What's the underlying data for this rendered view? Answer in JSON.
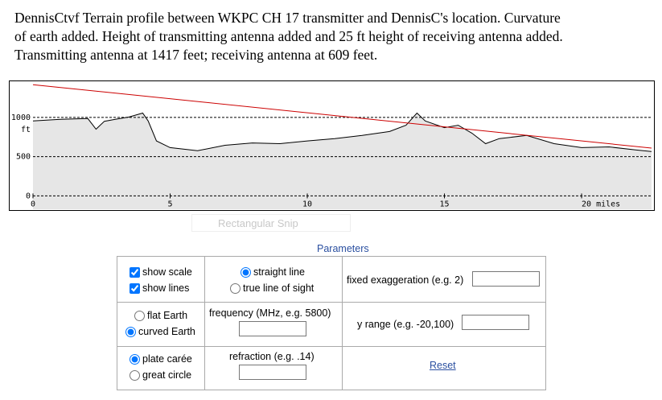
{
  "caption": [
    "DennisCtvf  Terrain profile between WKPC CH 17 transmitter and DennisC's location. Curvature",
    "of earth added. Height of transmitting antenna added and 25 ft height of receiving antenna added.",
    "Transmitting antenna at 1417 feet; receiving antenna at 609 feet."
  ],
  "chart_data": {
    "type": "line",
    "series": [
      {
        "name": "terrain",
        "color": "#000000",
        "fill": "#e6e6e6",
        "x": [
          0,
          1,
          2,
          2.3,
          2.6,
          3,
          3.5,
          4,
          4.2,
          4.5,
          5,
          6,
          7,
          8,
          9,
          10,
          11,
          12,
          13,
          13.6,
          14,
          14.3,
          15,
          15.5,
          16,
          16.5,
          17,
          18,
          19,
          20,
          21,
          22,
          22.55
        ],
        "values": [
          955,
          975,
          985,
          850,
          950,
          975,
          1005,
          1055,
          955,
          700,
          615,
          575,
          645,
          675,
          665,
          700,
          730,
          770,
          820,
          900,
          1055,
          955,
          870,
          900,
          800,
          665,
          730,
          770,
          665,
          615,
          625,
          585,
          565
        ]
      },
      {
        "name": "line of sight",
        "color": "#cc0000",
        "x": [
          0,
          22.55
        ],
        "values": [
          1417,
          609
        ]
      }
    ],
    "xlim": [
      0,
      22.55
    ],
    "ylim": [
      -170,
      1460
    ],
    "xticks": [
      0,
      5,
      10,
      15,
      {
        "value": 20,
        "label": "20 miles"
      }
    ],
    "yticks": [
      0,
      500,
      1000
    ],
    "y_unit": "ft",
    "grid": true
  },
  "snip_label": "Rectangular Snip",
  "parameters": {
    "title": "Parameters",
    "show_scale": {
      "label": "show scale",
      "checked": true
    },
    "show_lines": {
      "label": "show lines",
      "checked": true
    },
    "straight_line": {
      "label": "straight line",
      "checked": true
    },
    "true_line_of_sight": {
      "label": "true line of sight",
      "checked": false
    },
    "fixed_exaggeration": "fixed exaggeration (e.g. 2)",
    "flat_earth": {
      "label": "flat Earth",
      "checked": false
    },
    "curved_earth": {
      "label": "curved Earth",
      "checked": true
    },
    "frequency": "frequency (MHz, e.g. 5800)",
    "y_range": "y range (e.g. -20,100)",
    "plate_carree": {
      "label": "plate carée",
      "checked": true
    },
    "great_circle": {
      "label": "great circle",
      "checked": false
    },
    "refraction": "refraction (e.g. .14)",
    "reset": "Reset"
  }
}
